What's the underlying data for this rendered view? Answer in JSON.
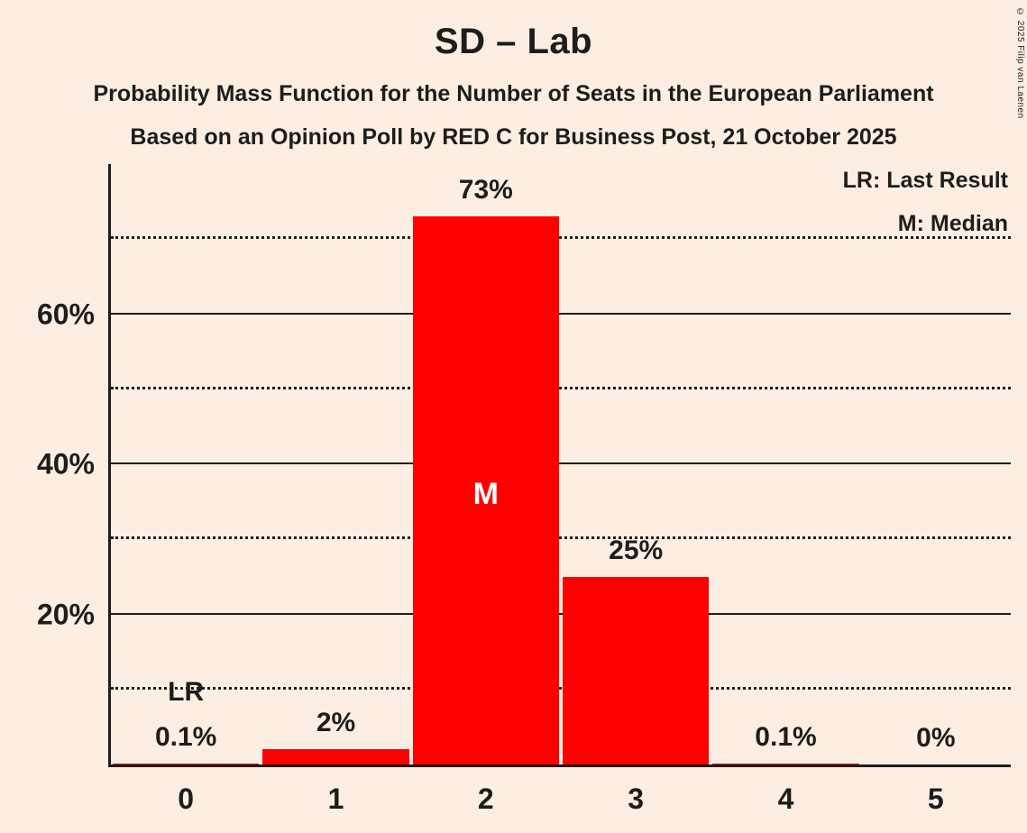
{
  "header": {
    "title": "SD – Lab",
    "subtitle": "Probability Mass Function for the Number of Seats in the European Parliament",
    "poll_line": "Based on an Opinion Poll by RED C for Business Post, 21 October 2025"
  },
  "legend": {
    "last_result": "LR: Last Result",
    "median": "M: Median"
  },
  "copyright": "© 2025 Filip van Laenen",
  "chart_data": {
    "type": "bar",
    "title": "SD – Lab",
    "categories": [
      "0",
      "1",
      "2",
      "3",
      "4",
      "5"
    ],
    "values": [
      0.1,
      2,
      73,
      25,
      0.1,
      0
    ],
    "bar_labels": [
      "0.1%",
      "2%",
      "73%",
      "25%",
      "0.1%",
      "0%"
    ],
    "y_tick_values": [
      20,
      40,
      60
    ],
    "y_tick_labels": [
      "20%",
      "40%",
      "60%"
    ],
    "dotted_gridlines": [
      10,
      30,
      50,
      70
    ],
    "ylim": [
      0,
      80
    ],
    "median_index": 2,
    "median_label": "M",
    "last_result_index": 0,
    "last_result_label": "LR",
    "bar_color": "#ff0000",
    "background_color": "#fdeee3",
    "text_color": "#1d1d1b",
    "legend_position": "top-right",
    "grid": true
  }
}
